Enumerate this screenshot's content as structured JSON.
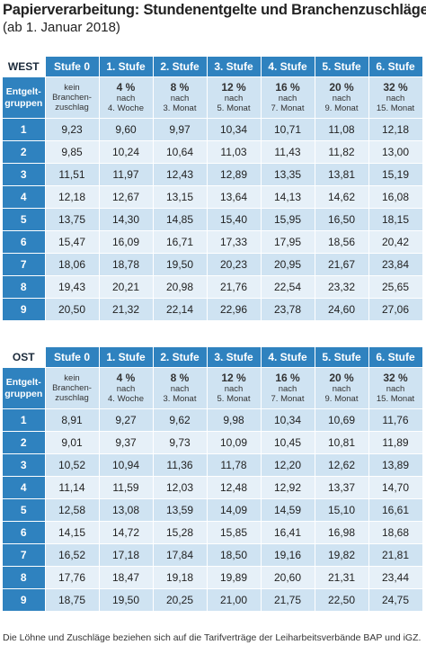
{
  "title": "Papierverarbeitung: Stundenentgelte und Branchenzuschläge",
  "subtitle": "(ab 1. Januar 2018)",
  "row_header_label": "Entgelt-gruppen",
  "stufen": [
    "Stufe 0",
    "1. Stufe",
    "2. Stufe",
    "3. Stufe",
    "4. Stufe",
    "5. Stufe",
    "6. Stufe"
  ],
  "zuschlag": [
    {
      "pct": "",
      "line1": "kein",
      "line2": "Branchen-",
      "line3": "zuschlag"
    },
    {
      "pct": "4 %",
      "line1": "nach",
      "line2": "4. Woche",
      "line3": ""
    },
    {
      "pct": "8 %",
      "line1": "nach",
      "line2": "3. Monat",
      "line3": ""
    },
    {
      "pct": "12 %",
      "line1": "nach",
      "line2": "5. Monat",
      "line3": ""
    },
    {
      "pct": "16 %",
      "line1": "nach",
      "line2": "7. Monat",
      "line3": ""
    },
    {
      "pct": "20 %",
      "line1": "nach",
      "line2": "9. Monat",
      "line3": ""
    },
    {
      "pct": "32 %",
      "line1": "nach",
      "line2": "15. Monat",
      "line3": ""
    }
  ],
  "west": {
    "label": "WEST",
    "rows": [
      {
        "group": "1",
        "values": [
          "9,23",
          "9,60",
          "9,97",
          "10,34",
          "10,71",
          "11,08",
          "12,18"
        ]
      },
      {
        "group": "2",
        "values": [
          "9,85",
          "10,24",
          "10,64",
          "11,03",
          "11,43",
          "11,82",
          "13,00"
        ]
      },
      {
        "group": "3",
        "values": [
          "11,51",
          "11,97",
          "12,43",
          "12,89",
          "13,35",
          "13,81",
          "15,19"
        ]
      },
      {
        "group": "4",
        "values": [
          "12,18",
          "12,67",
          "13,15",
          "13,64",
          "14,13",
          "14,62",
          "16,08"
        ]
      },
      {
        "group": "5",
        "values": [
          "13,75",
          "14,30",
          "14,85",
          "15,40",
          "15,95",
          "16,50",
          "18,15"
        ]
      },
      {
        "group": "6",
        "values": [
          "15,47",
          "16,09",
          "16,71",
          "17,33",
          "17,95",
          "18,56",
          "20,42"
        ]
      },
      {
        "group": "7",
        "values": [
          "18,06",
          "18,78",
          "19,50",
          "20,23",
          "20,95",
          "21,67",
          "23,84"
        ]
      },
      {
        "group": "8",
        "values": [
          "19,43",
          "20,21",
          "20,98",
          "21,76",
          "22,54",
          "23,32",
          "25,65"
        ]
      },
      {
        "group": "9",
        "values": [
          "20,50",
          "21,32",
          "22,14",
          "22,96",
          "23,78",
          "24,60",
          "27,06"
        ]
      }
    ]
  },
  "ost": {
    "label": "OST",
    "rows": [
      {
        "group": "1",
        "values": [
          "8,91",
          "9,27",
          "9,62",
          "9,98",
          "10,34",
          "10,69",
          "11,76"
        ]
      },
      {
        "group": "2",
        "values": [
          "9,01",
          "9,37",
          "9,73",
          "10,09",
          "10,45",
          "10,81",
          "11,89"
        ]
      },
      {
        "group": "3",
        "values": [
          "10,52",
          "10,94",
          "11,36",
          "11,78",
          "12,20",
          "12,62",
          "13,89"
        ]
      },
      {
        "group": "4",
        "values": [
          "11,14",
          "11,59",
          "12,03",
          "12,48",
          "12,92",
          "13,37",
          "14,70"
        ]
      },
      {
        "group": "5",
        "values": [
          "12,58",
          "13,08",
          "13,59",
          "14,09",
          "14,59",
          "15,10",
          "16,61"
        ]
      },
      {
        "group": "6",
        "values": [
          "14,15",
          "14,72",
          "15,28",
          "15,85",
          "16,41",
          "16,98",
          "18,68"
        ]
      },
      {
        "group": "7",
        "values": [
          "16,52",
          "17,18",
          "17,84",
          "18,50",
          "19,16",
          "19,82",
          "21,81"
        ]
      },
      {
        "group": "8",
        "values": [
          "17,76",
          "18,47",
          "19,18",
          "19,89",
          "20,60",
          "21,31",
          "23,44"
        ]
      },
      {
        "group": "9",
        "values": [
          "18,75",
          "19,50",
          "20,25",
          "21,00",
          "21,75",
          "22,50",
          "24,75"
        ]
      }
    ]
  },
  "footnote": "Die Löhne und Zuschläge beziehen sich auf die Tarifverträge der Leiharbeitsverbände BAP und iGZ."
}
